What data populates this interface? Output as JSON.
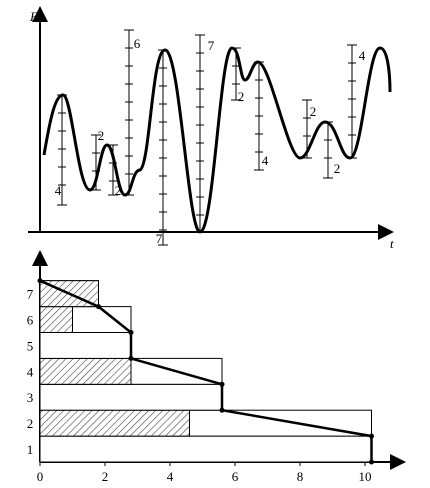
{
  "top_panel": {
    "y_label": "F",
    "x_label": "t",
    "ranges": [
      4,
      2,
      2,
      6,
      7,
      7,
      2,
      4,
      2,
      2,
      4
    ]
  },
  "bottom_panel": {
    "levels": [
      1,
      2,
      3,
      4,
      5,
      6,
      7
    ],
    "xticks": [
      0,
      2,
      4,
      6,
      8,
      10
    ],
    "totals": [
      10.2,
      10.2,
      5.6,
      5.6,
      2.8,
      2.8,
      1.8
    ],
    "hatched": [
      0,
      4.6,
      0,
      2.8,
      0,
      1,
      1.8
    ]
  }
}
